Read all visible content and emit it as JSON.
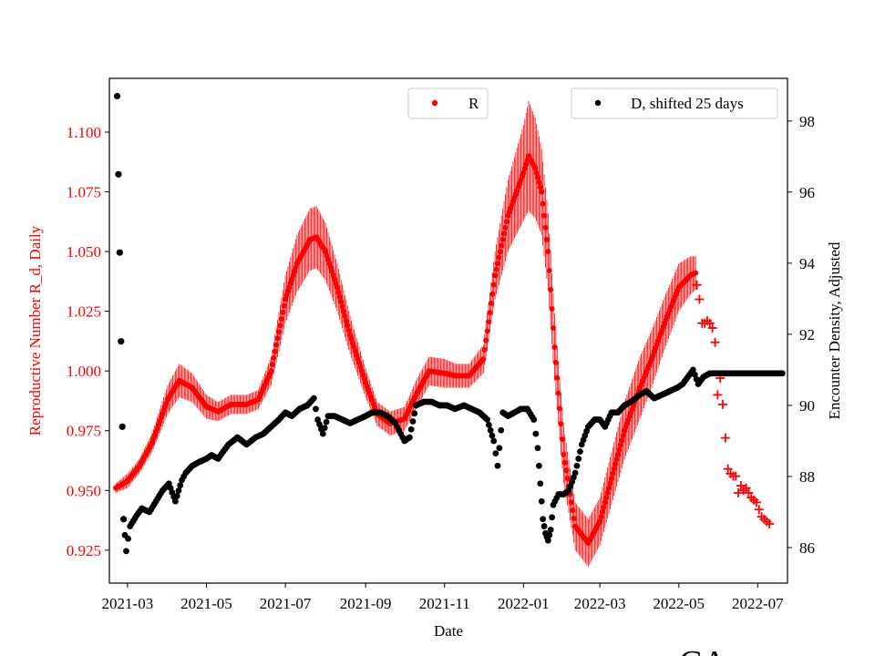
{
  "chart_data": {
    "type": "scatter",
    "xlabel": "Date",
    "ylabel_left": "Reproductive Number R_d, Daily",
    "ylabel_right": "Encounter Density, Adjusted",
    "x_start": "2021-02-15",
    "x_end": "2022-07-24",
    "x_ticks": [
      "2021-03",
      "2021-05",
      "2021-07",
      "2021-09",
      "2021-11",
      "2022-01",
      "2022-03",
      "2022-05",
      "2022-07"
    ],
    "ylim_left": [
      0.9112,
      1.1225
    ],
    "yticks_left": [
      0.925,
      0.95,
      0.975,
      1.0,
      1.025,
      1.05,
      1.075,
      1.1
    ],
    "ylim_right": [
      85.0,
      99.2
    ],
    "yticks_right": [
      86,
      88,
      90,
      92,
      94,
      96,
      98
    ],
    "grid": false,
    "legend_left": {
      "label": "R",
      "placement": "upper-center"
    },
    "legend_right": {
      "label": "D, shifted 25 days",
      "placement": "upper-right"
    },
    "colors": {
      "r_series": "#ff0000",
      "d_series": "#000000",
      "left_axis_text": "#ff0000",
      "right_axis_text": "#000000"
    },
    "bottom_text": "CA",
    "series": [
      {
        "name": "R",
        "axis": "left",
        "marker": "dot",
        "errorbars": true,
        "x": [
          "2021-02-20",
          "2021-03-01",
          "2021-03-10",
          "2021-03-20",
          "2021-04-01",
          "2021-04-10",
          "2021-04-20",
          "2021-05-01",
          "2021-05-10",
          "2021-05-20",
          "2021-06-01",
          "2021-06-10",
          "2021-06-20",
          "2021-07-01",
          "2021-07-10",
          "2021-07-20",
          "2021-07-25",
          "2021-08-01",
          "2021-08-10",
          "2021-08-20",
          "2021-09-01",
          "2021-09-10",
          "2021-09-20",
          "2021-10-01",
          "2021-10-10",
          "2021-10-20",
          "2021-11-01",
          "2021-11-10",
          "2021-11-20",
          "2021-12-01",
          "2021-12-10",
          "2021-12-20",
          "2022-01-01",
          "2022-01-05",
          "2022-01-10",
          "2022-01-15",
          "2022-01-20",
          "2022-01-25",
          "2022-02-01",
          "2022-02-10",
          "2022-02-20",
          "2022-03-01",
          "2022-03-10",
          "2022-03-20",
          "2022-04-01",
          "2022-04-10",
          "2022-04-20",
          "2022-05-01",
          "2022-05-10",
          "2022-05-14"
        ],
        "y": [
          0.951,
          0.954,
          0.96,
          0.97,
          0.988,
          0.996,
          0.993,
          0.985,
          0.983,
          0.986,
          0.986,
          0.988,
          1.0,
          1.03,
          1.045,
          1.055,
          1.056,
          1.05,
          1.035,
          1.015,
          0.995,
          0.982,
          0.978,
          0.98,
          0.99,
          1.0,
          0.999,
          0.998,
          0.998,
          1.005,
          1.04,
          1.065,
          1.083,
          1.09,
          1.085,
          1.075,
          1.05,
          1.01,
          0.965,
          0.935,
          0.928,
          0.937,
          0.955,
          0.975,
          0.993,
          1.005,
          1.02,
          1.035,
          1.04,
          1.041
        ],
        "error": [
          0.002,
          0.003,
          0.003,
          0.004,
          0.006,
          0.007,
          0.006,
          0.005,
          0.004,
          0.004,
          0.004,
          0.004,
          0.006,
          0.01,
          0.012,
          0.013,
          0.013,
          0.012,
          0.01,
          0.008,
          0.006,
          0.005,
          0.005,
          0.005,
          0.006,
          0.006,
          0.006,
          0.005,
          0.005,
          0.006,
          0.01,
          0.015,
          0.02,
          0.023,
          0.021,
          0.018,
          0.016,
          0.014,
          0.012,
          0.01,
          0.01,
          0.01,
          0.011,
          0.012,
          0.013,
          0.012,
          0.011,
          0.01,
          0.008,
          0.007
        ]
      },
      {
        "name": "",
        "axis": "left",
        "marker": "plus",
        "x": [
          "2022-05-15",
          "2022-05-17",
          "2022-05-19",
          "2022-05-21",
          "2022-05-23",
          "2022-05-25",
          "2022-05-27",
          "2022-05-29",
          "2022-05-31",
          "2022-06-02",
          "2022-06-04",
          "2022-06-06",
          "2022-06-08",
          "2022-06-10",
          "2022-06-12",
          "2022-06-14",
          "2022-06-16",
          "2022-06-18",
          "2022-06-20",
          "2022-06-22",
          "2022-06-24",
          "2022-06-26",
          "2022-06-28",
          "2022-06-30",
          "2022-07-02",
          "2022-07-04",
          "2022-07-06",
          "2022-07-08",
          "2022-07-10"
        ],
        "y": [
          1.036,
          1.03,
          1.02,
          1.02,
          1.021,
          1.02,
          1.018,
          1.012,
          0.99,
          0.997,
          0.986,
          0.972,
          0.959,
          0.957,
          0.956,
          0.956,
          0.949,
          0.952,
          0.95,
          0.951,
          0.949,
          0.947,
          0.946,
          0.945,
          0.942,
          0.939,
          0.938,
          0.937,
          0.936
        ]
      },
      {
        "name": "D, shifted 25 days",
        "axis": "right",
        "marker": "dot",
        "x": [
          "2021-02-21",
          "2021-02-22",
          "2021-02-23",
          "2021-02-24",
          "2021-02-25",
          "2021-02-26",
          "2021-02-28",
          "2021-03-03",
          "2021-03-08",
          "2021-03-12",
          "2021-03-18",
          "2021-03-23",
          "2021-03-28",
          "2021-04-02",
          "2021-04-07",
          "2021-04-12",
          "2021-04-15",
          "2021-04-20",
          "2021-04-25",
          "2021-05-01",
          "2021-05-05",
          "2021-05-10",
          "2021-05-18",
          "2021-05-25",
          "2021-06-01",
          "2021-06-08",
          "2021-06-14",
          "2021-06-20",
          "2021-06-26",
          "2021-07-01",
          "2021-07-06",
          "2021-07-12",
          "2021-07-18",
          "2021-07-23",
          "2021-07-26",
          "2021-07-30",
          "2021-08-03",
          "2021-08-08",
          "2021-08-14",
          "2021-08-20",
          "2021-08-26",
          "2021-09-01",
          "2021-09-06",
          "2021-09-12",
          "2021-09-18",
          "2021-09-24",
          "2021-10-01",
          "2021-10-05",
          "2021-10-10",
          "2021-10-16",
          "2021-10-22",
          "2021-10-28",
          "2021-11-03",
          "2021-11-09",
          "2021-11-16",
          "2021-11-22",
          "2021-11-28",
          "2021-12-04",
          "2021-12-09",
          "2021-12-12",
          "2021-12-16",
          "2021-12-20",
          "2021-12-25",
          "2021-12-30",
          "2022-01-04",
          "2022-01-09",
          "2022-01-12",
          "2022-01-14",
          "2022-01-16",
          "2022-01-18",
          "2022-01-20",
          "2022-01-22",
          "2022-01-24",
          "2022-01-28",
          "2022-02-01",
          "2022-02-05",
          "2022-02-10",
          "2022-02-15",
          "2022-02-20",
          "2022-02-25",
          "2022-03-01",
          "2022-03-05",
          "2022-03-10",
          "2022-03-15",
          "2022-03-20",
          "2022-03-25",
          "2022-04-01",
          "2022-04-06",
          "2022-04-12",
          "2022-04-18",
          "2022-04-24",
          "2022-04-30",
          "2022-05-04",
          "2022-05-08",
          "2022-05-12",
          "2022-05-16",
          "2022-05-20",
          "2022-05-25",
          "2022-06-01",
          "2022-06-08",
          "2022-06-15",
          "2022-06-22",
          "2022-06-29",
          "2022-07-06",
          "2022-07-13",
          "2022-07-20"
        ],
        "y": [
          98.7,
          96.5,
          94.3,
          91.8,
          89.4,
          86.8,
          85.9,
          86.6,
          86.9,
          87.1,
          87.0,
          87.3,
          87.6,
          87.8,
          87.3,
          87.9,
          88.1,
          88.3,
          88.4,
          88.5,
          88.6,
          88.5,
          88.9,
          89.1,
          88.9,
          89.1,
          89.2,
          89.4,
          89.6,
          89.8,
          89.7,
          89.9,
          90.0,
          90.2,
          89.6,
          89.2,
          89.7,
          89.7,
          89.6,
          89.5,
          89.6,
          89.7,
          89.8,
          89.8,
          89.7,
          89.5,
          89.0,
          89.1,
          90.0,
          90.1,
          90.1,
          90.0,
          90.0,
          89.9,
          90.0,
          89.9,
          89.8,
          89.6,
          89.0,
          88.3,
          89.8,
          89.7,
          89.8,
          89.9,
          89.9,
          89.6,
          88.8,
          87.8,
          86.8,
          86.4,
          86.2,
          86.5,
          87.2,
          87.5,
          87.5,
          87.6,
          88.1,
          88.9,
          89.4,
          89.6,
          89.6,
          89.4,
          89.8,
          89.8,
          90.0,
          90.1,
          90.3,
          90.4,
          90.2,
          90.3,
          90.4,
          90.5,
          90.6,
          90.8,
          91.0,
          90.6,
          90.8,
          90.9,
          90.9,
          90.9,
          90.9,
          90.9,
          90.9,
          90.9,
          90.9,
          90.9
        ]
      }
    ]
  }
}
